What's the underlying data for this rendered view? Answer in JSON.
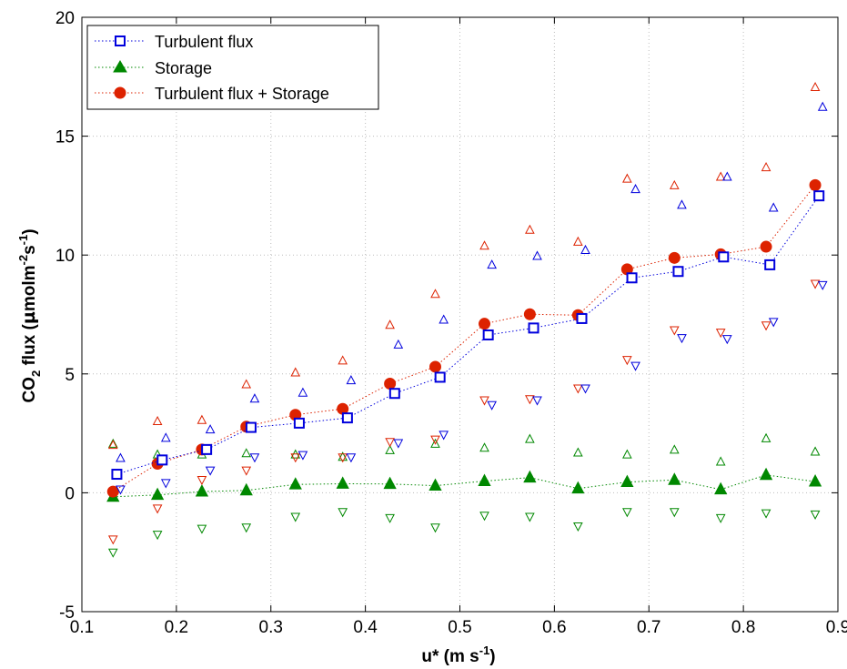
{
  "chart_data": {
    "type": "scatter",
    "xlabel": {
      "base": "u* (m s",
      "sup": "-1",
      "close": ")"
    },
    "ylabel": {
      "pre": "CO",
      "sub": "2",
      "mid": " flux (",
      "mu": "µ",
      "molm": "molm",
      "sup1": "-2",
      "s": "s",
      "sup2": "-1",
      "close": ")"
    },
    "xlim": [
      0.1,
      0.9
    ],
    "ylim": [
      -5,
      20
    ],
    "x_ticks": [
      "0.1",
      "0.2",
      "0.3",
      "0.4",
      "0.5",
      "0.6",
      "0.7",
      "0.8",
      "0.9"
    ],
    "y_ticks": [
      "-5",
      "0",
      "5",
      "10",
      "15",
      "20"
    ],
    "grid": true,
    "legend_position": "top-left",
    "colors": {
      "turbulent": "#0000dd",
      "storage": "#008800",
      "total": "#dd2200"
    },
    "series": [
      {
        "name": "Turbulent flux",
        "marker": "square",
        "color": "#0000dd",
        "x": [
          0.137,
          0.185,
          0.232,
          0.279,
          0.33,
          0.381,
          0.431,
          0.479,
          0.53,
          0.578,
          0.629,
          0.682,
          0.731,
          0.779,
          0.828,
          0.88
        ],
        "y": [
          0.78,
          1.38,
          1.82,
          2.75,
          2.93,
          3.15,
          4.18,
          4.86,
          6.64,
          6.93,
          7.33,
          9.04,
          9.31,
          9.92,
          9.59,
          12.49
        ],
        "upper": [
          1.45,
          2.3,
          2.65,
          3.95,
          4.2,
          4.72,
          6.22,
          7.27,
          9.58,
          9.95,
          10.2,
          12.76,
          12.1,
          13.28,
          11.98,
          16.22
        ],
        "lower": [
          0.15,
          0.42,
          0.95,
          1.5,
          1.6,
          1.5,
          2.1,
          2.45,
          3.7,
          3.9,
          4.4,
          5.35,
          6.52,
          6.48,
          7.2,
          8.75
        ]
      },
      {
        "name": "Storage",
        "marker": "triangle",
        "color": "#008800",
        "x": [
          0.133,
          0.18,
          0.227,
          0.274,
          0.326,
          0.376,
          0.426,
          0.474,
          0.526,
          0.574,
          0.625,
          0.677,
          0.727,
          0.776,
          0.824,
          0.876
        ],
        "y": [
          -0.17,
          -0.09,
          0.05,
          0.1,
          0.35,
          0.38,
          0.37,
          0.3,
          0.49,
          0.64,
          0.18,
          0.45,
          0.54,
          0.14,
          0.75,
          0.47
        ],
        "upper": [
          2.05,
          1.6,
          1.6,
          1.65,
          1.6,
          1.5,
          1.78,
          2.05,
          1.88,
          2.25,
          1.68,
          1.6,
          1.8,
          1.3,
          2.28,
          1.72
        ],
        "lower": [
          -2.5,
          -1.75,
          -1.5,
          -1.45,
          -1.0,
          -0.8,
          -1.05,
          -1.45,
          -0.95,
          -1.0,
          -1.4,
          -0.8,
          -0.8,
          -1.05,
          -0.85,
          -0.9
        ]
      },
      {
        "name": "Turbulent flux + Storage",
        "marker": "circle",
        "color": "#dd2200",
        "x": [
          0.133,
          0.18,
          0.227,
          0.274,
          0.326,
          0.376,
          0.426,
          0.474,
          0.526,
          0.574,
          0.625,
          0.677,
          0.727,
          0.776,
          0.824,
          0.876
        ],
        "y": [
          0.05,
          1.22,
          1.82,
          2.78,
          3.28,
          3.53,
          4.59,
          5.3,
          7.11,
          7.51,
          7.47,
          9.4,
          9.88,
          10.03,
          10.35,
          12.94
        ],
        "upper": [
          2.0,
          3.0,
          3.05,
          4.55,
          5.05,
          5.55,
          7.05,
          8.35,
          10.38,
          11.05,
          10.55,
          13.2,
          12.92,
          13.28,
          13.68,
          17.05
        ],
        "lower": [
          -1.95,
          -0.65,
          0.55,
          0.95,
          1.5,
          1.5,
          2.15,
          2.25,
          3.9,
          3.95,
          4.4,
          5.6,
          6.85,
          6.75,
          7.05,
          8.8
        ]
      }
    ]
  }
}
